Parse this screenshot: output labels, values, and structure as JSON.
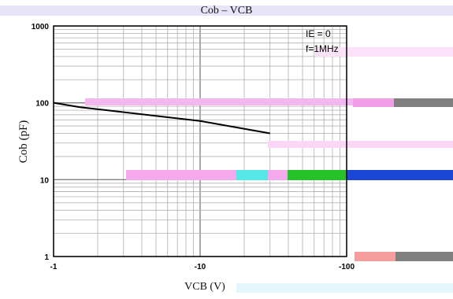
{
  "chart_data": {
    "type": "line",
    "title": "Cob – VCB",
    "ylabel": "Cob (pF)",
    "xlabel": "VCB (V)",
    "x_scale": "log",
    "y_scale": "log",
    "xlim": [
      -1,
      -100
    ],
    "ylim": [
      1,
      1000
    ],
    "x_ticks": [
      "-1",
      "-10",
      "-100"
    ],
    "y_ticks": [
      "1000",
      "100",
      "10",
      "1"
    ],
    "grid": true,
    "annotations": [
      "IE = 0",
      "f=1MHz"
    ],
    "series": [
      {
        "x": [
          -1,
          -1.5,
          -10,
          -30
        ],
        "y": [
          100,
          88,
          58,
          40
        ]
      }
    ],
    "colors": {
      "line": "#000000",
      "grid": "#b0b0b0",
      "axis": "#000000"
    }
  }
}
